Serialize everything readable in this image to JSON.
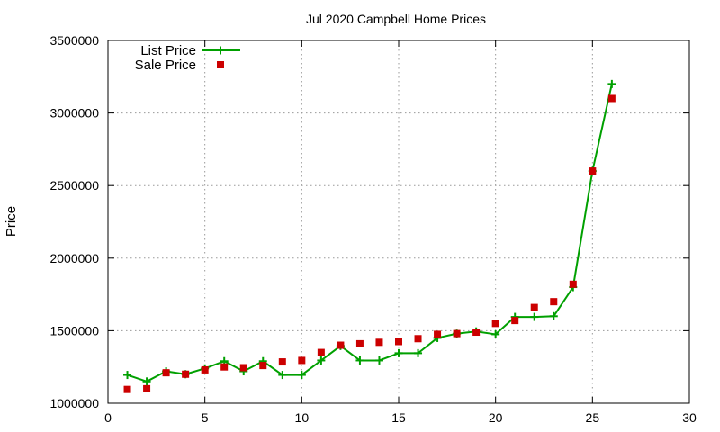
{
  "chart_data": {
    "type": "line",
    "title": "Jul 2020 Campbell Home Prices",
    "xlabel": "",
    "ylabel": "Price",
    "xlim": [
      0,
      30
    ],
    "ylim": [
      1000000,
      3500000
    ],
    "x_ticks": [
      0,
      5,
      10,
      15,
      20,
      25,
      30
    ],
    "y_ticks": [
      1000000,
      1500000,
      2000000,
      2500000,
      3000000,
      3500000
    ],
    "grid": true,
    "legend_position": "top-left",
    "series": [
      {
        "name": "List Price",
        "style": "line-points",
        "marker": "plus",
        "color": "#00a000",
        "x": [
          1,
          2,
          3,
          4,
          5,
          6,
          7,
          8,
          9,
          10,
          11,
          12,
          13,
          14,
          15,
          16,
          17,
          18,
          19,
          20,
          21,
          22,
          23,
          24,
          25,
          26
        ],
        "y": [
          1195000,
          1150000,
          1220000,
          1200000,
          1240000,
          1290000,
          1220000,
          1290000,
          1195000,
          1195000,
          1295000,
          1395000,
          1295000,
          1295000,
          1345000,
          1345000,
          1450000,
          1480000,
          1495000,
          1475000,
          1595000,
          1595000,
          1600000,
          1800000,
          2600000,
          3200000
        ]
      },
      {
        "name": "Sale Price",
        "style": "points",
        "marker": "square",
        "color": "#cc0000",
        "x": [
          1,
          2,
          3,
          4,
          5,
          6,
          7,
          8,
          9,
          10,
          11,
          12,
          13,
          14,
          15,
          16,
          17,
          18,
          19,
          20,
          21,
          22,
          23,
          24,
          25,
          26
        ],
        "y": [
          1095000,
          1100000,
          1210000,
          1200000,
          1230000,
          1250000,
          1245000,
          1260000,
          1285000,
          1295000,
          1350000,
          1400000,
          1410000,
          1420000,
          1425000,
          1445000,
          1475000,
          1480000,
          1490000,
          1550000,
          1570000,
          1660000,
          1700000,
          1820000,
          2600000,
          3100000
        ]
      }
    ]
  }
}
